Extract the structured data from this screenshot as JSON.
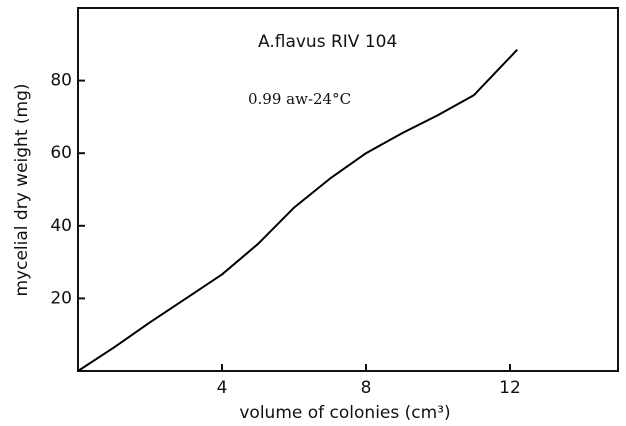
{
  "chart_data": {
    "type": "line",
    "xlabel": "volume of colonies (cm³)",
    "ylabel": "mycelial dry weight (mg)",
    "annotations": [
      "A.flavus RIV 104",
      "0.99 aw-24°C"
    ],
    "x": [
      0,
      1,
      2,
      3,
      4,
      5,
      6,
      7,
      8,
      9,
      10,
      11,
      12.2
    ],
    "series": [
      {
        "color": "#000000",
        "values": [
          0,
          6.5,
          13.4,
          20,
          26.6,
          35,
          45,
          53,
          60,
          65.5,
          70.5,
          76,
          88.5
        ]
      }
    ],
    "xlim": [
      0,
      15
    ],
    "xticks": [
      4,
      8,
      12
    ],
    "ylim": [
      0,
      100
    ],
    "yticks": [
      20,
      40,
      60,
      80
    ]
  }
}
